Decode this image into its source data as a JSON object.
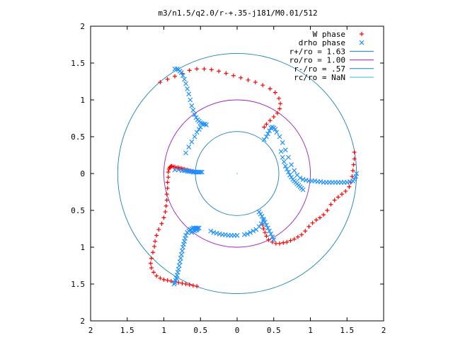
{
  "chart_data": {
    "type": "scatter",
    "title": "m3/n1.5/q2.0/r-+.35-j181/M0.01/512",
    "xlabel": "",
    "ylabel": "",
    "xlim": [
      -2,
      2
    ],
    "ylim": [
      -2,
      2
    ],
    "x_tick_labels": [
      "2",
      "1.5",
      "1",
      "0.5",
      "0",
      "0.5",
      "1",
      "1.5",
      "2"
    ],
    "y_tick_labels": [
      "2",
      "1.5",
      "1",
      "0.5",
      "0",
      "0.5",
      "1",
      "1.5",
      "2"
    ],
    "grid": false,
    "legend_position": "top-right",
    "legend": [
      {
        "label": "W phase",
        "marker": "plus",
        "color": "#ff0000"
      },
      {
        "label": "drho phase",
        "marker": "cross",
        "color": "#1e90ff"
      },
      {
        "label": "r+/ro = 1.63",
        "marker": "line",
        "color": "#1a80c0"
      },
      {
        "label": "ro/ro = 1.00",
        "marker": "line",
        "color": "#a020c0"
      },
      {
        "label": "r-/ro = .57",
        "marker": "line",
        "color": "#1a80c0"
      },
      {
        "label": "rc/ro = NaN",
        "marker": "line",
        "color": "#30c0c0"
      }
    ],
    "circles": [
      {
        "name": "r+/ro",
        "radius": 1.63,
        "color": "#1a80c0"
      },
      {
        "name": "ro/ro",
        "radius": 1.0,
        "color": "#a020c0"
      },
      {
        "name": "r-/ro",
        "radius": 0.57,
        "color": "#1a80c0"
      }
    ],
    "series": [
      {
        "name": "W phase",
        "color": "#ff0000",
        "x": [
          -1.05,
          -0.95,
          -0.85,
          -0.75,
          -0.65,
          -0.55,
          -0.45,
          -0.35,
          -0.25,
          -0.15,
          -0.05,
          0.05,
          0.15,
          0.25,
          0.35,
          0.45,
          0.52,
          0.57,
          0.59,
          0.58,
          0.55,
          0.5,
          0.45,
          0.4,
          0.37,
          1.6,
          1.6,
          1.59,
          1.58,
          1.57,
          1.55,
          1.53,
          1.48,
          1.43,
          1.38,
          1.33,
          1.28,
          1.23,
          1.18,
          1.13,
          1.08,
          1.03,
          0.98,
          0.93,
          0.88,
          0.83,
          0.78,
          0.73,
          0.68,
          0.63,
          0.58,
          0.53,
          0.48,
          0.43,
          0.4,
          0.38,
          0.36,
          0.35,
          -0.55,
          -0.6,
          -0.65,
          -0.7,
          -0.75,
          -0.8,
          -0.85,
          -0.9,
          -0.95,
          -1.0,
          -1.05,
          -1.1,
          -1.14,
          -1.17,
          -1.18,
          -1.17,
          -1.15,
          -1.13,
          -1.12,
          -1.1,
          -1.07,
          -1.03,
          -1.0,
          -0.98,
          -0.97,
          -0.96,
          -0.96,
          -0.95,
          -0.95,
          -0.94,
          -0.94,
          -0.93,
          -0.92,
          -0.91,
          -0.9,
          -0.89,
          -0.87,
          -0.85,
          -0.82,
          -0.8,
          -0.78,
          -0.76,
          -0.74,
          -0.72,
          -0.7,
          -0.68,
          -0.66,
          -0.64,
          -0.62,
          -0.6,
          -0.58,
          -0.56
        ],
        "y": [
          1.24,
          1.28,
          1.32,
          1.36,
          1.4,
          1.42,
          1.42,
          1.41,
          1.39,
          1.36,
          1.33,
          1.3,
          1.27,
          1.24,
          1.2,
          1.15,
          1.1,
          1.02,
          0.95,
          0.88,
          0.82,
          0.77,
          0.72,
          0.67,
          0.63,
          0.29,
          0.2,
          0.12,
          0.04,
          -0.04,
          -0.12,
          -0.18,
          -0.24,
          -0.28,
          -0.32,
          -0.36,
          -0.42,
          -0.5,
          -0.56,
          -0.6,
          -0.63,
          -0.67,
          -0.72,
          -0.78,
          -0.83,
          -0.86,
          -0.89,
          -0.91,
          -0.93,
          -0.94,
          -0.95,
          -0.95,
          -0.93,
          -0.9,
          -0.85,
          -0.8,
          -0.75,
          -0.7,
          -1.53,
          -1.52,
          -1.51,
          -1.5,
          -1.49,
          -1.48,
          -1.47,
          -1.46,
          -1.45,
          -1.44,
          -1.42,
          -1.39,
          -1.34,
          -1.28,
          -1.22,
          -1.15,
          -1.07,
          -0.99,
          -0.92,
          -0.84,
          -0.76,
          -0.68,
          -0.6,
          -0.52,
          -0.44,
          -0.36,
          -0.28,
          -0.2,
          -0.12,
          -0.05,
          0.02,
          0.06,
          0.08,
          0.09,
          0.1,
          0.1,
          0.09,
          0.09,
          0.08,
          0.08,
          0.07,
          0.07,
          0.06,
          0.06,
          0.05,
          0.05,
          0.04,
          0.04,
          0.03,
          0.03,
          0.02,
          0.02
        ]
      },
      {
        "name": "drho phase",
        "color": "#1e90ff",
        "x": [
          -0.85,
          -0.82,
          -0.8,
          -0.78,
          -0.76,
          -0.74,
          -0.72,
          -0.7,
          -0.68,
          -0.66,
          -0.64,
          -0.62,
          -0.6,
          -0.58,
          -0.56,
          -0.54,
          -0.52,
          -0.5,
          -0.48,
          -0.46,
          -0.44,
          -0.42,
          0.37,
          0.4,
          0.42,
          0.44,
          0.46,
          0.48,
          0.5,
          0.52,
          0.54,
          0.58,
          0.62,
          0.66,
          0.7,
          0.74,
          0.78,
          0.82,
          0.86,
          0.9,
          0.94,
          0.98,
          1.02,
          1.06,
          1.1,
          1.14,
          1.18,
          1.22,
          1.26,
          1.3,
          1.34,
          1.38,
          1.42,
          1.46,
          1.5,
          1.54,
          1.58,
          1.6,
          1.62,
          1.63,
          -0.86,
          -0.85,
          -0.84,
          -0.83,
          -0.82,
          -0.81,
          -0.8,
          -0.79,
          -0.78,
          -0.77,
          -0.76,
          -0.75,
          -0.74,
          -0.73,
          -0.72,
          -0.71,
          -0.7,
          -0.68,
          -0.66,
          -0.64,
          -0.62,
          -0.6,
          -0.58,
          -0.56,
          -0.54,
          -0.52,
          -0.85,
          -0.8,
          -0.75,
          -0.72,
          -0.7,
          -0.68,
          -0.66,
          -0.64,
          -0.62,
          -0.6,
          -0.58,
          -0.56,
          -0.54,
          -0.52,
          -0.5,
          -0.48,
          0.3,
          0.32,
          0.34,
          0.36,
          0.38,
          0.4,
          0.42,
          0.44,
          0.46,
          0.48,
          0.5,
          -0.7,
          -0.66,
          -0.62,
          -0.58,
          -0.55,
          -0.52,
          -0.5,
          -0.62,
          -0.58,
          -0.56,
          -0.55,
          -0.54,
          -0.36,
          -0.32,
          -0.28,
          -0.24,
          -0.2,
          -0.16,
          -0.12,
          -0.08,
          -0.04,
          0.0,
          0.6,
          0.62,
          0.64,
          0.66,
          0.68,
          0.7,
          0.72,
          0.74,
          0.76,
          0.78,
          0.8,
          0.82,
          0.84,
          0.86,
          0.88,
          0.9,
          0.1,
          0.14,
          0.18,
          0.22,
          0.26,
          0.3,
          0.33,
          0.36
        ],
        "y": [
          1.42,
          1.42,
          1.41,
          1.39,
          1.37,
          1.33,
          1.28,
          1.22,
          1.15,
          1.08,
          1.0,
          0.92,
          0.86,
          0.8,
          0.76,
          0.73,
          0.71,
          0.69,
          0.68,
          0.67,
          0.67,
          0.66,
          0.46,
          0.5,
          0.54,
          0.58,
          0.62,
          0.63,
          0.62,
          0.6,
          0.56,
          0.5,
          0.42,
          0.32,
          0.22,
          0.12,
          0.04,
          -0.02,
          -0.06,
          -0.08,
          -0.09,
          -0.1,
          -0.1,
          -0.1,
          -0.11,
          -0.11,
          -0.12,
          -0.12,
          -0.12,
          -0.12,
          -0.12,
          -0.12,
          -0.12,
          -0.12,
          -0.12,
          -0.11,
          -0.1,
          -0.08,
          -0.04,
          0.0,
          -1.5,
          -1.48,
          -1.45,
          -1.42,
          -1.38,
          -1.34,
          -1.3,
          -1.25,
          -1.2,
          -1.15,
          -1.1,
          -1.05,
          -1.0,
          -0.96,
          -0.92,
          -0.88,
          -0.84,
          -0.8,
          -0.78,
          -0.76,
          -0.75,
          -0.74,
          -0.74,
          -0.74,
          -0.74,
          -0.74,
          0.05,
          0.05,
          0.04,
          0.04,
          0.04,
          0.03,
          0.03,
          0.03,
          0.03,
          0.02,
          0.02,
          0.02,
          0.02,
          0.02,
          0.02,
          0.02,
          -0.52,
          -0.55,
          -0.58,
          -0.62,
          -0.66,
          -0.7,
          -0.74,
          -0.78,
          -0.82,
          -0.86,
          -0.9,
          0.28,
          0.36,
          0.43,
          0.5,
          0.56,
          0.6,
          0.63,
          -0.8,
          -0.78,
          -0.77,
          -0.76,
          -0.75,
          -0.78,
          -0.8,
          -0.81,
          -0.82,
          -0.83,
          -0.83,
          -0.84,
          -0.84,
          -0.84,
          -0.84,
          0.3,
          0.22,
          0.16,
          0.1,
          0.06,
          0.02,
          -0.02,
          -0.05,
          -0.08,
          -0.1,
          -0.12,
          -0.14,
          -0.16,
          -0.18,
          -0.2,
          -0.22,
          -0.83,
          -0.82,
          -0.8,
          -0.78,
          -0.76,
          -0.72,
          -0.68,
          -0.64
        ]
      }
    ]
  }
}
